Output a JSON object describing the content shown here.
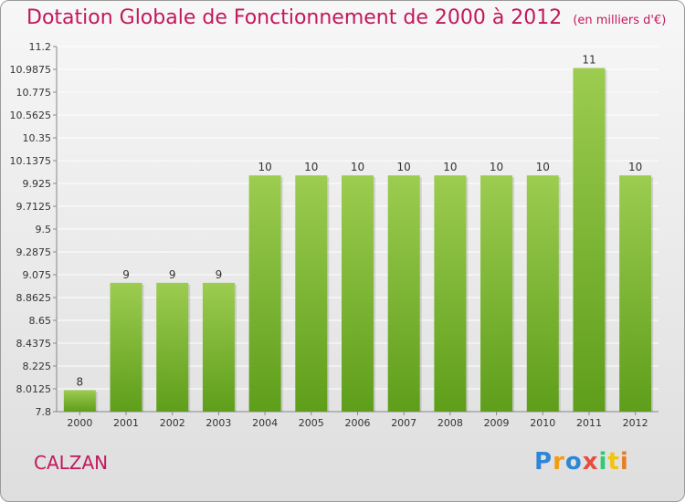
{
  "title": "Dotation Globale de Fonctionnement de 2000 à 2012",
  "subtitle": "(en milliers d'€)",
  "commune": "CALZAN",
  "logo": "Proxiti",
  "colors": {
    "bar_top": "#9ccc50",
    "bar_bottom": "#5e9e1a",
    "title": "#c2185b"
  },
  "chart_data": {
    "type": "bar",
    "title": "Dotation Globale de Fonctionnement de 2000 à 2012",
    "categories": [
      "2000",
      "2001",
      "2002",
      "2003",
      "2004",
      "2005",
      "2006",
      "2007",
      "2008",
      "2009",
      "2010",
      "2011",
      "2012"
    ],
    "values": [
      8,
      9,
      9,
      9,
      10,
      10,
      10,
      10,
      10,
      10,
      10,
      11,
      10
    ],
    "data_labels": [
      "8",
      "9",
      "9",
      "9",
      "10",
      "10",
      "10",
      "10",
      "10",
      "10",
      "10",
      "11",
      "10"
    ],
    "ylim": [
      7.8,
      11.2
    ],
    "yticks": [
      "7.8",
      "8.0125",
      "8.225",
      "8.4375",
      "8.65",
      "8.8625",
      "9.075",
      "9.2875",
      "9.5",
      "9.7125",
      "9.925",
      "10.1375",
      "10.35",
      "10.5625",
      "10.775",
      "10.9875",
      "11.2"
    ],
    "grid": true
  }
}
